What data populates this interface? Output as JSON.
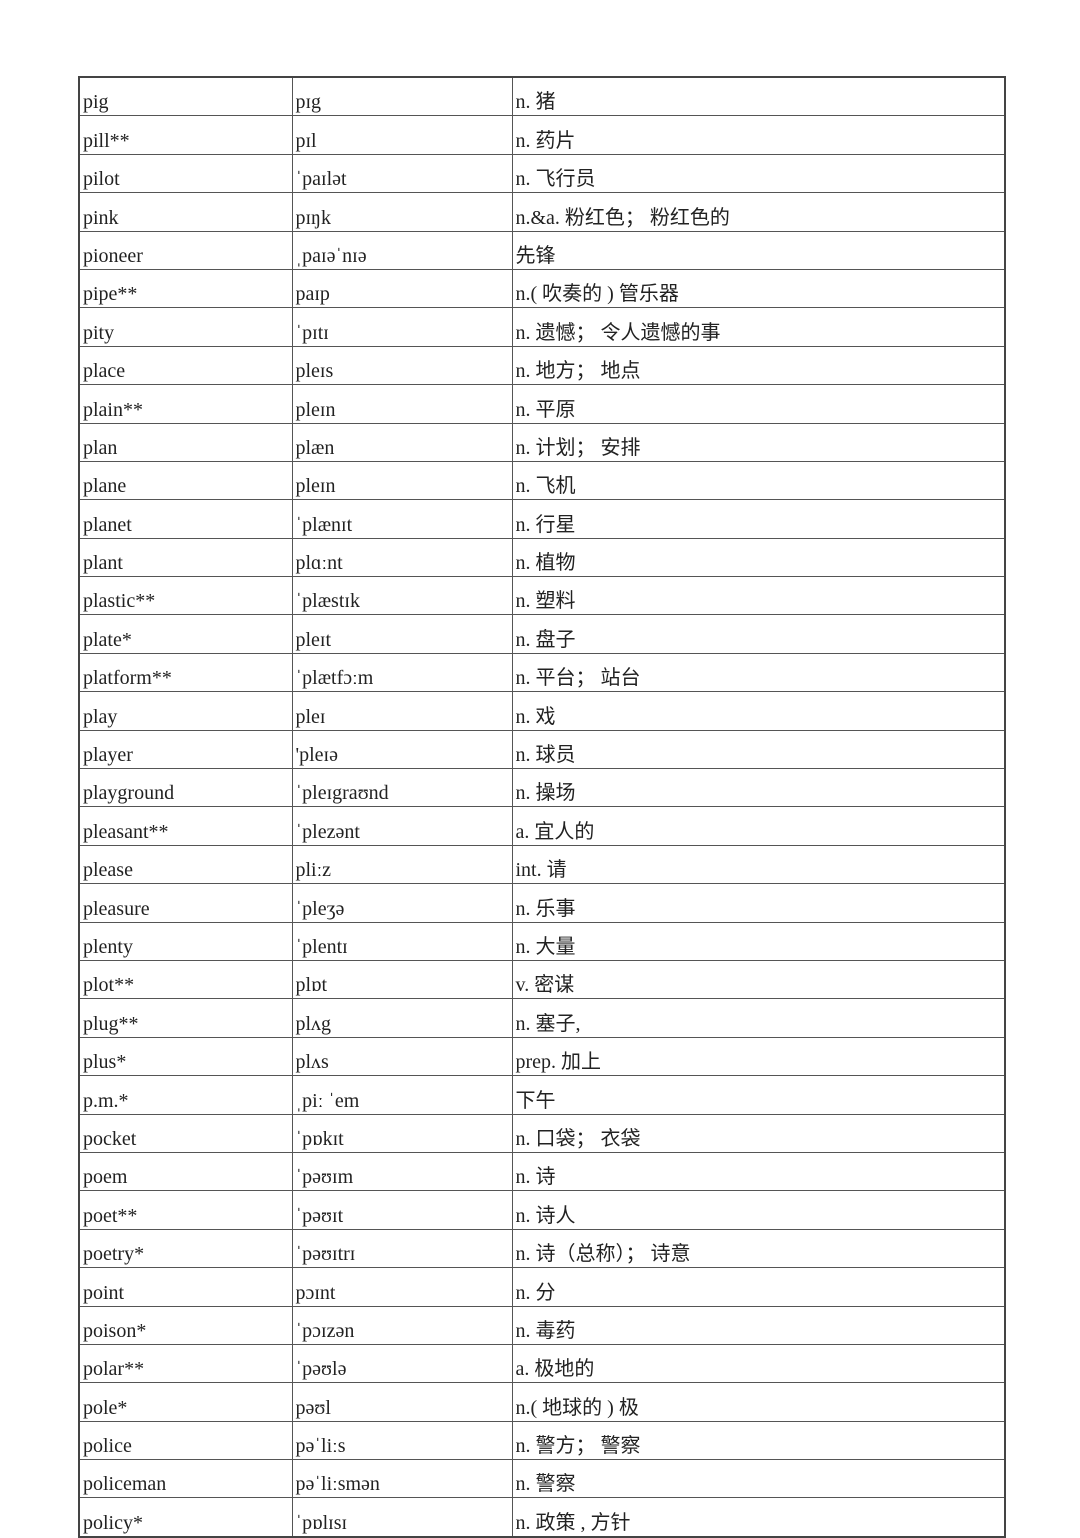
{
  "vocabulary_table": {
    "rows": [
      [
        "pig",
        "pɪg",
        "n. 猪"
      ],
      [
        "pill**",
        "pɪl",
        "n. 药片"
      ],
      [
        "pilot",
        "ˈpaɪlət",
        "n. 飞行员"
      ],
      [
        "pink",
        "pɪŋk",
        "n.&a. 粉红色； 粉红色的"
      ],
      [
        "pioneer",
        "ˌpaɪəˈnɪə",
        "先锋"
      ],
      [
        "pipe**",
        "paɪp",
        "n.( 吹奏的 ) 管乐器"
      ],
      [
        "pity",
        "ˈpɪtɪ",
        "n. 遗憾； 令人遗憾的事"
      ],
      [
        "place",
        "pleɪs",
        "n. 地方； 地点"
      ],
      [
        "plain**",
        "pleɪn",
        "n. 平原"
      ],
      [
        "plan",
        "plæn",
        "n. 计划； 安排"
      ],
      [
        "plane",
        "pleɪn",
        "n. 飞机"
      ],
      [
        "planet",
        "ˈplænɪt",
        "n. 行星"
      ],
      [
        "plant",
        "plɑːnt",
        "n. 植物"
      ],
      [
        "plastic**",
        "ˈplæstɪk",
        "n. 塑料"
      ],
      [
        "plate*",
        "pleɪt",
        "n. 盘子"
      ],
      [
        "platform**",
        "ˈplætfɔːm",
        "n. 平台； 站台"
      ],
      [
        "play",
        "pleɪ",
        "n. 戏"
      ],
      [
        "player",
        "'pleɪə",
        "n. 球员"
      ],
      [
        "playground",
        "ˈpleɪgraʊnd",
        "n. 操场"
      ],
      [
        "pleasant**",
        "ˈplezənt",
        "a. 宜人的"
      ],
      [
        "please",
        "pliːz",
        "int. 请"
      ],
      [
        "pleasure",
        "ˈpleʒə",
        "n. 乐事"
      ],
      [
        "plenty",
        "ˈplentɪ",
        "n. 大量"
      ],
      [
        "plot**",
        "plɒt",
        "v. 密谋"
      ],
      [
        "plug**",
        "plʌg",
        "n. 塞子,"
      ],
      [
        "plus*",
        "plʌs",
        "prep. 加上"
      ],
      [
        "p.m.*",
        "ˌpiː ˈem",
        "下午"
      ],
      [
        "pocket",
        "ˈpɒkɪt",
        "n. 口袋； 衣袋"
      ],
      [
        "poem",
        "ˈpəʊɪm",
        "n. 诗"
      ],
      [
        "poet**",
        "ˈpəʊɪt",
        "n. 诗人"
      ],
      [
        "poetry*",
        "ˈpəʊɪtrɪ",
        "n. 诗（总称）； 诗意"
      ],
      [
        "point",
        "pɔɪnt",
        "n. 分"
      ],
      [
        "poison*",
        "ˈpɔɪzən",
        "n. 毒药"
      ],
      [
        "polar**",
        "ˈpəʊlə",
        "a. 极地的"
      ],
      [
        "pole*",
        "pəʊl",
        "n.( 地球的 ) 极"
      ],
      [
        "police",
        "pəˈliːs",
        "n. 警方； 警察"
      ],
      [
        "policeman",
        "pəˈliːsmən",
        "n. 警察"
      ],
      [
        "policy*",
        "ˈpɒlɪsɪ",
        "n. 政策 , 方针"
      ]
    ]
  }
}
